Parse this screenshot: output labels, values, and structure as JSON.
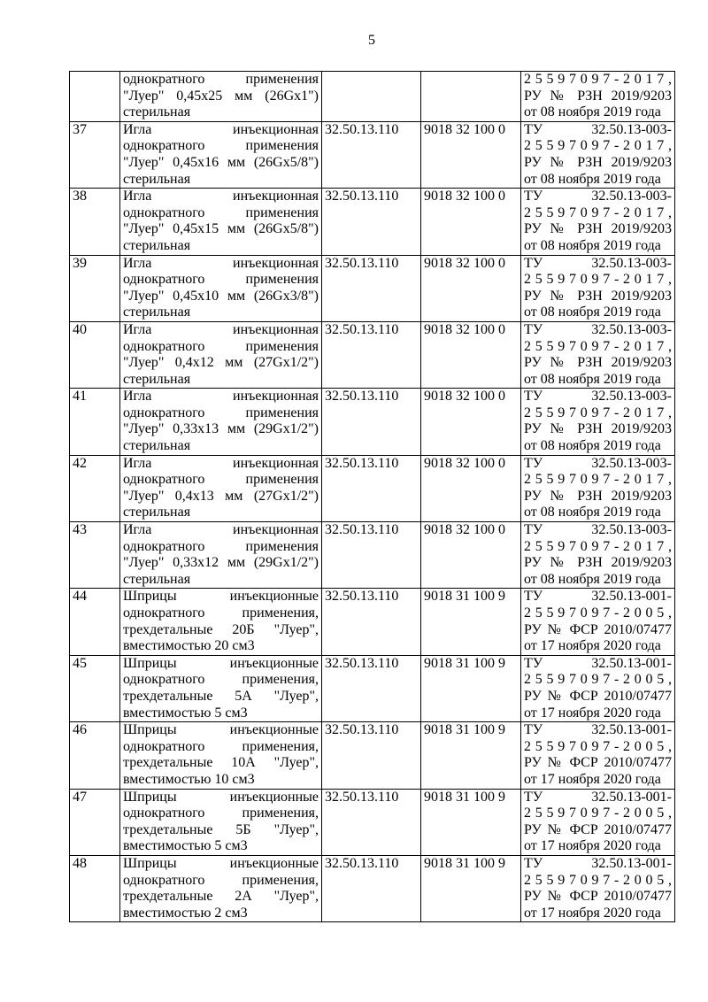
{
  "page": {
    "number": "5"
  },
  "table": {
    "partial_row": {
      "desc_lines": [
        "однократного применения",
        "\"Луер\" 0,45x25 мм (26Gx1\")",
        "стерильная"
      ],
      "reg_lines": [
        "2 5 5 9 7 0 9 7 - 2 0 1 7 ,",
        "РУ № РЗН 2019/9203",
        "от 08 ноября 2019 года"
      ]
    },
    "rows": [
      {
        "num": "37",
        "desc_lines": [
          "Игла инъекционная",
          "однократного применения",
          "\"Луер\" 0,45x16 мм (26Gx5/8\")",
          "стерильная"
        ],
        "okpd": "32.50.13.110",
        "tnved": "9018 32 100 0",
        "reg_lines": [
          "ТУ 32.50.13-003-",
          "2 5 5 9 7 0 9 7 - 2 0 1 7 ,",
          "РУ № РЗН 2019/9203",
          "от 08 ноября 2019 года"
        ]
      },
      {
        "num": "38",
        "desc_lines": [
          "Игла инъекционная",
          "однократного применения",
          "\"Луер\" 0,45x15 мм (26Gx5/8\")",
          "стерильная"
        ],
        "okpd": "32.50.13.110",
        "tnved": "9018 32 100 0",
        "reg_lines": [
          "ТУ 32.50.13-003-",
          "2 5 5 9 7 0 9 7 - 2 0 1 7 ,",
          "РУ № РЗН 2019/9203",
          "от 08 ноября 2019 года"
        ]
      },
      {
        "num": "39",
        "desc_lines": [
          "Игла инъекционная",
          "однократного применения",
          "\"Луер\" 0,45x10 мм (26Gx3/8\")",
          "стерильная"
        ],
        "okpd": "32.50.13.110",
        "tnved": "9018 32 100 0",
        "reg_lines": [
          "ТУ 32.50.13-003-",
          "2 5 5 9 7 0 9 7 - 2 0 1 7 ,",
          "РУ № РЗН 2019/9203",
          "от 08 ноября 2019 года"
        ]
      },
      {
        "num": "40",
        "desc_lines": [
          "Игла инъекционная",
          "однократного применения",
          "\"Луер\" 0,4x12 мм (27Gx1/2\")",
          "стерильная"
        ],
        "okpd": "32.50.13.110",
        "tnved": "9018 32 100 0",
        "reg_lines": [
          "ТУ 32.50.13-003-",
          "2 5 5 9 7 0 9 7 - 2 0 1 7 ,",
          "РУ № РЗН 2019/9203",
          "от 08 ноября 2019 года"
        ]
      },
      {
        "num": "41",
        "desc_lines": [
          "Игла инъекционная",
          "однократного применения",
          "\"Луер\" 0,33x13 мм (29Gx1/2\")",
          "стерильная"
        ],
        "okpd": "32.50.13.110",
        "tnved": "9018 32 100 0",
        "reg_lines": [
          "ТУ 32.50.13-003-",
          "2 5 5 9 7 0 9 7 - 2 0 1 7 ,",
          "РУ № РЗН 2019/9203",
          "от 08 ноября 2019 года"
        ]
      },
      {
        "num": "42",
        "desc_lines": [
          "Игла инъекционная",
          "однократного применения",
          "\"Луер\" 0,4x13 мм (27Gx1/2\")",
          "стерильная"
        ],
        "okpd": "32.50.13.110",
        "tnved": "9018 32 100 0",
        "reg_lines": [
          "ТУ 32.50.13-003-",
          "2 5 5 9 7 0 9 7 - 2 0 1 7 ,",
          "РУ № РЗН 2019/9203",
          "от 08 ноября 2019 года"
        ]
      },
      {
        "num": "43",
        "desc_lines": [
          "Игла инъекционная",
          "однократного применения",
          "\"Луер\" 0,33x12 мм (29Gx1/2\")",
          "стерильная"
        ],
        "okpd": "32.50.13.110",
        "tnved": "9018 32 100 0",
        "reg_lines": [
          "ТУ 32.50.13-003-",
          "2 5 5 9 7 0 9 7 - 2 0 1 7 ,",
          "РУ № РЗН 2019/9203",
          "от 08 ноября 2019 года"
        ]
      },
      {
        "num": "44",
        "desc_lines": [
          "Шприцы инъекционные",
          "однократного применения,",
          "трехдетальные 20Б \"Луер\",",
          "вместимостью 20 см3"
        ],
        "okpd": "32.50.13.110",
        "tnved": "9018 31 100 9",
        "reg_lines": [
          "ТУ 32.50.13-001-",
          "2 5 5 9 7 0 9 7 - 2 0 0 5 ,",
          "РУ № ФСР 2010/07477",
          "от 17 ноября 2020 года"
        ]
      },
      {
        "num": "45",
        "desc_lines": [
          "Шприцы инъекционные",
          "однократного применения,",
          "трехдетальные 5А \"Луер\",",
          "вместимостью 5 см3"
        ],
        "okpd": "32.50.13.110",
        "tnved": "9018 31 100 9",
        "reg_lines": [
          "ТУ 32.50.13-001-",
          "2 5 5 9 7 0 9 7 - 2 0 0 5 ,",
          "РУ № ФСР 2010/07477",
          "от 17 ноября 2020 года"
        ]
      },
      {
        "num": "46",
        "desc_lines": [
          "Шприцы инъекционные",
          "однократного применения,",
          "трехдетальные 10А \"Луер\",",
          "вместимостью 10 см3"
        ],
        "okpd": "32.50.13.110",
        "tnved": "9018 31 100 9",
        "reg_lines": [
          "ТУ 32.50.13-001-",
          "2 5 5 9 7 0 9 7 - 2 0 0 5 ,",
          "РУ № ФСР 2010/07477",
          "от 17 ноября 2020 года"
        ]
      },
      {
        "num": "47",
        "desc_lines": [
          "Шприцы инъекционные",
          "однократного применения,",
          "трехдетальные 5Б \"Луер\",",
          "вместимостью 5 см3"
        ],
        "okpd": "32.50.13.110",
        "tnved": "9018 31 100 9",
        "reg_lines": [
          "ТУ 32.50.13-001-",
          "2 5 5 9 7 0 9 7 - 2 0 0 5 ,",
          "РУ № ФСР 2010/07477",
          "от 17 ноября 2020 года"
        ]
      },
      {
        "num": "48",
        "desc_lines": [
          "Шприцы инъекционные",
          "однократного применения,",
          "трехдетальные 2А \"Луер\",",
          "вместимостью 2 см3"
        ],
        "okpd": "32.50.13.110",
        "tnved": "9018 31 100 9",
        "reg_lines": [
          "ТУ 32.50.13-001-",
          "2 5 5 9 7 0 9 7 - 2 0 0 5 ,",
          "РУ № ФСР 2010/07477",
          "от 17 ноября 2020 года"
        ]
      }
    ]
  }
}
